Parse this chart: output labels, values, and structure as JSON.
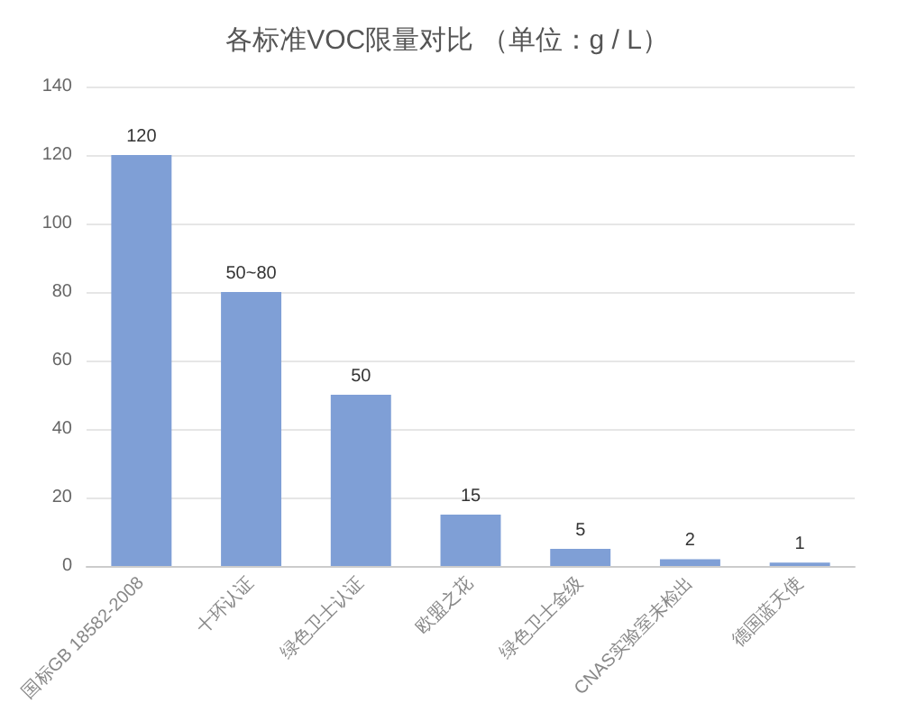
{
  "chart_data": {
    "type": "bar",
    "title": "各标准VOC限量对比 （单位：g / L）",
    "categories": [
      "国标GB 18582-2008",
      "十环认证",
      "绿色卫士认证",
      "欧盟之花",
      "绿色卫士金级",
      "CNAS实验室未检出",
      "德国蓝天使"
    ],
    "values": [
      120,
      80,
      50,
      15,
      5,
      2,
      1
    ],
    "value_labels": [
      "120",
      "50~80",
      "50",
      "15",
      "5",
      "2",
      "1"
    ],
    "color": "#7f9fd6",
    "ylim": [
      0,
      140
    ],
    "yticks": [
      0,
      20,
      40,
      60,
      80,
      100,
      120,
      140
    ],
    "grid": "y"
  }
}
